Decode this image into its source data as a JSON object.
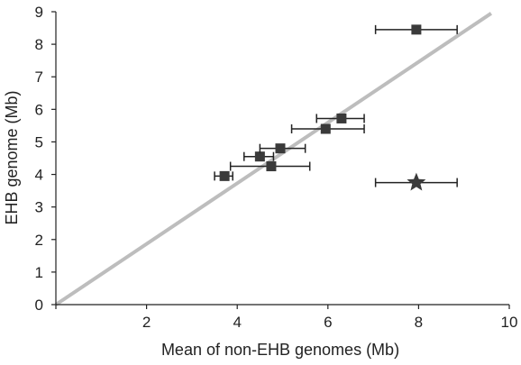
{
  "chart_data": {
    "type": "scatter",
    "xlabel": "Mean of non-EHB genomes (Mb)",
    "ylabel": "EHB genome (Mb)",
    "xlim": [
      0,
      10
    ],
    "ylim": [
      0,
      9
    ],
    "xticks": [
      2,
      4,
      6,
      8,
      10
    ],
    "yticks": [
      0,
      1,
      2,
      3,
      4,
      5,
      6,
      7,
      8,
      9
    ],
    "grid": false,
    "legend": "none",
    "colors": {
      "points": "#3a3a3a",
      "errorbars": "#222222",
      "line": "#bdbdbd",
      "axis": "#222222"
    },
    "reference_line": {
      "x": [
        0,
        9.6
      ],
      "y": [
        0,
        8.95
      ]
    },
    "points": [
      {
        "x": 3.72,
        "y": 3.95,
        "xerr_low": 3.5,
        "xerr_high": 3.9,
        "marker": "square"
      },
      {
        "x": 4.5,
        "y": 4.55,
        "xerr_low": 4.15,
        "xerr_high": 4.8,
        "marker": "square"
      },
      {
        "x": 4.75,
        "y": 4.25,
        "xerr_low": 3.85,
        "xerr_high": 5.6,
        "marker": "square"
      },
      {
        "x": 4.95,
        "y": 4.8,
        "xerr_low": 4.5,
        "xerr_high": 5.5,
        "marker": "square"
      },
      {
        "x": 5.95,
        "y": 5.4,
        "xerr_low": 5.2,
        "xerr_high": 6.8,
        "marker": "square"
      },
      {
        "x": 6.3,
        "y": 5.72,
        "xerr_low": 5.75,
        "xerr_high": 6.8,
        "marker": "square"
      },
      {
        "x": 7.95,
        "y": 8.45,
        "xerr_low": 7.05,
        "xerr_high": 8.85,
        "marker": "square"
      },
      {
        "x": 7.95,
        "y": 3.75,
        "xerr_low": 7.05,
        "xerr_high": 8.85,
        "marker": "star"
      }
    ]
  }
}
